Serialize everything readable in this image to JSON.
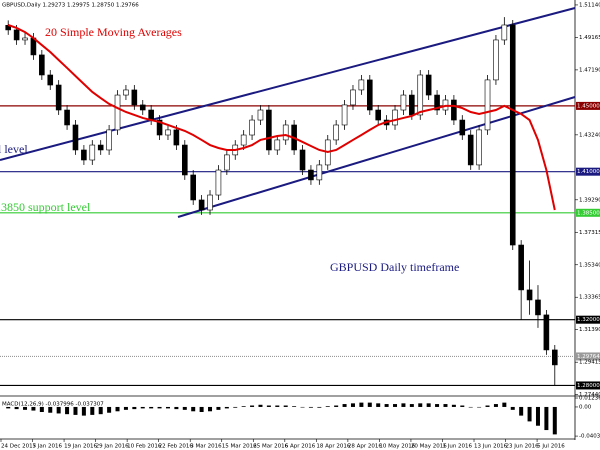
{
  "chart_data": {
    "type": "candlestick",
    "title": "GBPUSD,Daily 1.29273 1.29975 1.28750 1.29766",
    "candles": {
      "open": [
        1.499,
        1.4962,
        1.4901,
        1.4913,
        1.481,
        1.4688,
        1.4627,
        1.4475,
        1.4384,
        1.4232,
        1.4171,
        1.4262,
        1.4232,
        1.4354,
        1.4566,
        1.4597,
        1.4506,
        1.4475,
        1.4414,
        1.4323,
        1.4354,
        1.4262,
        1.408,
        1.3928,
        1.3867,
        1.3958,
        1.411,
        1.4202,
        1.4262,
        1.4323,
        1.4414,
        1.4475,
        1.4232,
        1.4293,
        1.4384,
        1.4232,
        1.411,
        1.405,
        1.4141,
        1.4293,
        1.4384,
        1.4506,
        1.4597,
        1.4658,
        1.4475,
        1.4414,
        1.4384,
        1.4475,
        1.4566,
        1.4445,
        1.4688,
        1.4566,
        1.4475,
        1.4536,
        1.4414,
        1.4323,
        1.4141,
        1.4354,
        1.4658,
        1.4901,
        1.4992,
        1.3654,
        1.3381,
        1.332,
        1.3229,
        1.3016
      ],
      "high": [
        1.502,
        1.4992,
        1.4943,
        1.4943,
        1.484,
        1.4718,
        1.4657,
        1.4505,
        1.4414,
        1.4262,
        1.4292,
        1.4292,
        1.4384,
        1.4596,
        1.4627,
        1.4627,
        1.4536,
        1.4505,
        1.4444,
        1.4384,
        1.4384,
        1.4292,
        1.411,
        1.3958,
        1.3988,
        1.414,
        1.4232,
        1.4292,
        1.4353,
        1.4444,
        1.4505,
        1.4505,
        1.4323,
        1.4414,
        1.4414,
        1.4262,
        1.414,
        1.4171,
        1.4323,
        1.4414,
        1.4536,
        1.4627,
        1.4688,
        1.4688,
        1.4505,
        1.4444,
        1.4505,
        1.4596,
        1.4596,
        1.4718,
        1.4718,
        1.4596,
        1.4566,
        1.4566,
        1.4444,
        1.4353,
        1.4384,
        1.4688,
        1.4931,
        1.504,
        1.5022,
        1.3684,
        1.356,
        1.341,
        1.3259,
        1.3046
      ],
      "low": [
        1.4932,
        1.4871,
        1.4871,
        1.478,
        1.4658,
        1.4597,
        1.4445,
        1.4354,
        1.4202,
        1.4141,
        1.4141,
        1.4202,
        1.4202,
        1.4324,
        1.4536,
        1.4476,
        1.4445,
        1.4384,
        1.4293,
        1.4293,
        1.4232,
        1.405,
        1.3898,
        1.3837,
        1.3837,
        1.3928,
        1.408,
        1.4172,
        1.4232,
        1.4293,
        1.4384,
        1.4202,
        1.4202,
        1.4263,
        1.4202,
        1.408,
        1.402,
        1.402,
        1.4111,
        1.4263,
        1.4354,
        1.4476,
        1.4567,
        1.4445,
        1.4384,
        1.4354,
        1.4354,
        1.4445,
        1.4415,
        1.4415,
        1.4536,
        1.4445,
        1.4445,
        1.4384,
        1.4293,
        1.4111,
        1.4111,
        1.4324,
        1.4628,
        1.4871,
        1.3624,
        1.32,
        1.323,
        1.315,
        1.2986,
        1.28
      ],
      "close": [
        1.4962,
        1.4901,
        1.4913,
        1.481,
        1.4688,
        1.4627,
        1.4475,
        1.4384,
        1.4232,
        1.4171,
        1.4262,
        1.4232,
        1.4354,
        1.4566,
        1.4597,
        1.4506,
        1.4475,
        1.4414,
        1.4323,
        1.4354,
        1.4262,
        1.408,
        1.3928,
        1.3867,
        1.3958,
        1.411,
        1.4202,
        1.4262,
        1.4323,
        1.4414,
        1.4475,
        1.4232,
        1.4293,
        1.4384,
        1.4232,
        1.411,
        1.405,
        1.4141,
        1.4293,
        1.4384,
        1.4506,
        1.4597,
        1.4658,
        1.4475,
        1.4414,
        1.4384,
        1.4475,
        1.4566,
        1.4445,
        1.4688,
        1.4566,
        1.4475,
        1.4536,
        1.4414,
        1.4323,
        1.4141,
        1.4354,
        1.4658,
        1.4901,
        1.4992,
        1.3654,
        1.3381,
        1.332,
        1.3229,
        1.3016,
        1.2925
      ]
    },
    "sma": {
      "name": "20 Simple Moving Averages",
      "color": "#e00000",
      "values": [
        1.4992,
        1.4974,
        1.4949,
        1.4913,
        1.487,
        1.4828,
        1.4779,
        1.4731,
        1.4682,
        1.4633,
        1.4585,
        1.4548,
        1.4512,
        1.4487,
        1.4463,
        1.4445,
        1.4427,
        1.4414,
        1.4402,
        1.4384,
        1.4366,
        1.4348,
        1.4323,
        1.4293,
        1.4262,
        1.4244,
        1.4232,
        1.4232,
        1.4244,
        1.4262,
        1.4293,
        1.4305,
        1.4317,
        1.4323,
        1.4305,
        1.4281,
        1.4256,
        1.4232,
        1.422,
        1.4232,
        1.4262,
        1.4293,
        1.4323,
        1.4354,
        1.4384,
        1.4402,
        1.4414,
        1.4427,
        1.4439,
        1.4463,
        1.4475,
        1.4487,
        1.45,
        1.45,
        1.4487,
        1.4463,
        1.4451,
        1.4463,
        1.4475,
        1.45,
        1.4475,
        1.4451,
        1.4414,
        1.4293,
        1.411,
        1.3867
      ]
    },
    "ylim": [
      1.2742,
      1.5144
    ],
    "yticks": [
      {
        "value": 1.5114,
        "label": "1.51140"
      },
      {
        "value": 1.49165,
        "label": "1.49165"
      },
      {
        "value": 1.4719,
        "label": "1.47190"
      },
      {
        "value": 1.4324,
        "label": "1.43240"
      },
      {
        "value": 1.3929,
        "label": "1.39290"
      },
      {
        "value": 1.37315,
        "label": "1.37315"
      },
      {
        "value": 1.3534,
        "label": "1.35340"
      },
      {
        "value": 1.33365,
        "label": "1.33365"
      },
      {
        "value": 1.3139,
        "label": "1.31390"
      },
      {
        "value": 1.29415,
        "label": "1.29415"
      },
      {
        "value": 1.2744,
        "label": "1.27440"
      }
    ],
    "levels": [
      {
        "value": 1.45,
        "label": "1.45000",
        "color": "#8b0000"
      },
      {
        "value": 1.41,
        "label": "1.41000",
        "color": "#1a1a80"
      },
      {
        "value": 1.385,
        "label": "1.38500",
        "color": "#33cc33"
      },
      {
        "value": 1.32,
        "label": "1.32000",
        "color": "#000000"
      },
      {
        "value": 1.28,
        "label": "1.28000",
        "color": "#000000"
      }
    ],
    "current": {
      "value": 1.29764,
      "label": "1.29764",
      "color": "#9a9a9a"
    },
    "annotations": [
      {
        "text": "l level",
        "color": "#1a1a80"
      },
      {
        "text": ".3850 support level",
        "color": "#33cc33"
      },
      {
        "text": "GBPUSD Daily timeframe",
        "color": "#1a1a80"
      }
    ],
    "xlabels": [
      "24 Dec 2015",
      "7 Jan 2016",
      "19 Jan 2016",
      "29 Jan 2016",
      "10 Feb 2016",
      "22 Feb 2016",
      "3 Mar 2016",
      "15 Mar 2016",
      "25 Mar 2016",
      "6 Apr 2016",
      "18 Apr 2016",
      "28 Apr 2016",
      "10 May 2016",
      "20 May 2016",
      "1 Jun 2016",
      "13 Jun 2016",
      "23 Jun 2016",
      "5 Jul 2016"
    ],
    "macd": {
      "label": "MACD(12,26,9) -0.037996 -0.037307",
      "color": "#000000",
      "ylim": [
        -0.043,
        0.0124
      ],
      "yticks": [
        0.012366,
        {
          "value": 0,
          "label": "0.00"
        },
        -0.040345
      ],
      "values": [
        -0.002,
        -0.003,
        -0.004,
        -0.005,
        -0.007,
        -0.008,
        -0.009,
        -0.01,
        -0.011,
        -0.012,
        -0.011,
        -0.01,
        -0.008,
        -0.006,
        -0.004,
        -0.003,
        -0.002,
        -0.002,
        -0.002,
        -0.002,
        -0.003,
        -0.004,
        -0.006,
        -0.007,
        -0.006,
        -0.004,
        -0.002,
        -0.001,
        0.001,
        0.002,
        0.003,
        0.002,
        0.002,
        0.002,
        0.001,
        0.0,
        -0.001,
        -0.001,
        0.001,
        0.002,
        0.004,
        0.005,
        0.006,
        0.006,
        0.005,
        0.004,
        0.004,
        0.005,
        0.004,
        0.005,
        0.005,
        0.004,
        0.004,
        0.003,
        0.002,
        0.0,
        0.0,
        0.002,
        0.004,
        0.006,
        -0.004,
        -0.012,
        -0.02,
        -0.026,
        -0.032,
        -0.038
      ]
    }
  }
}
